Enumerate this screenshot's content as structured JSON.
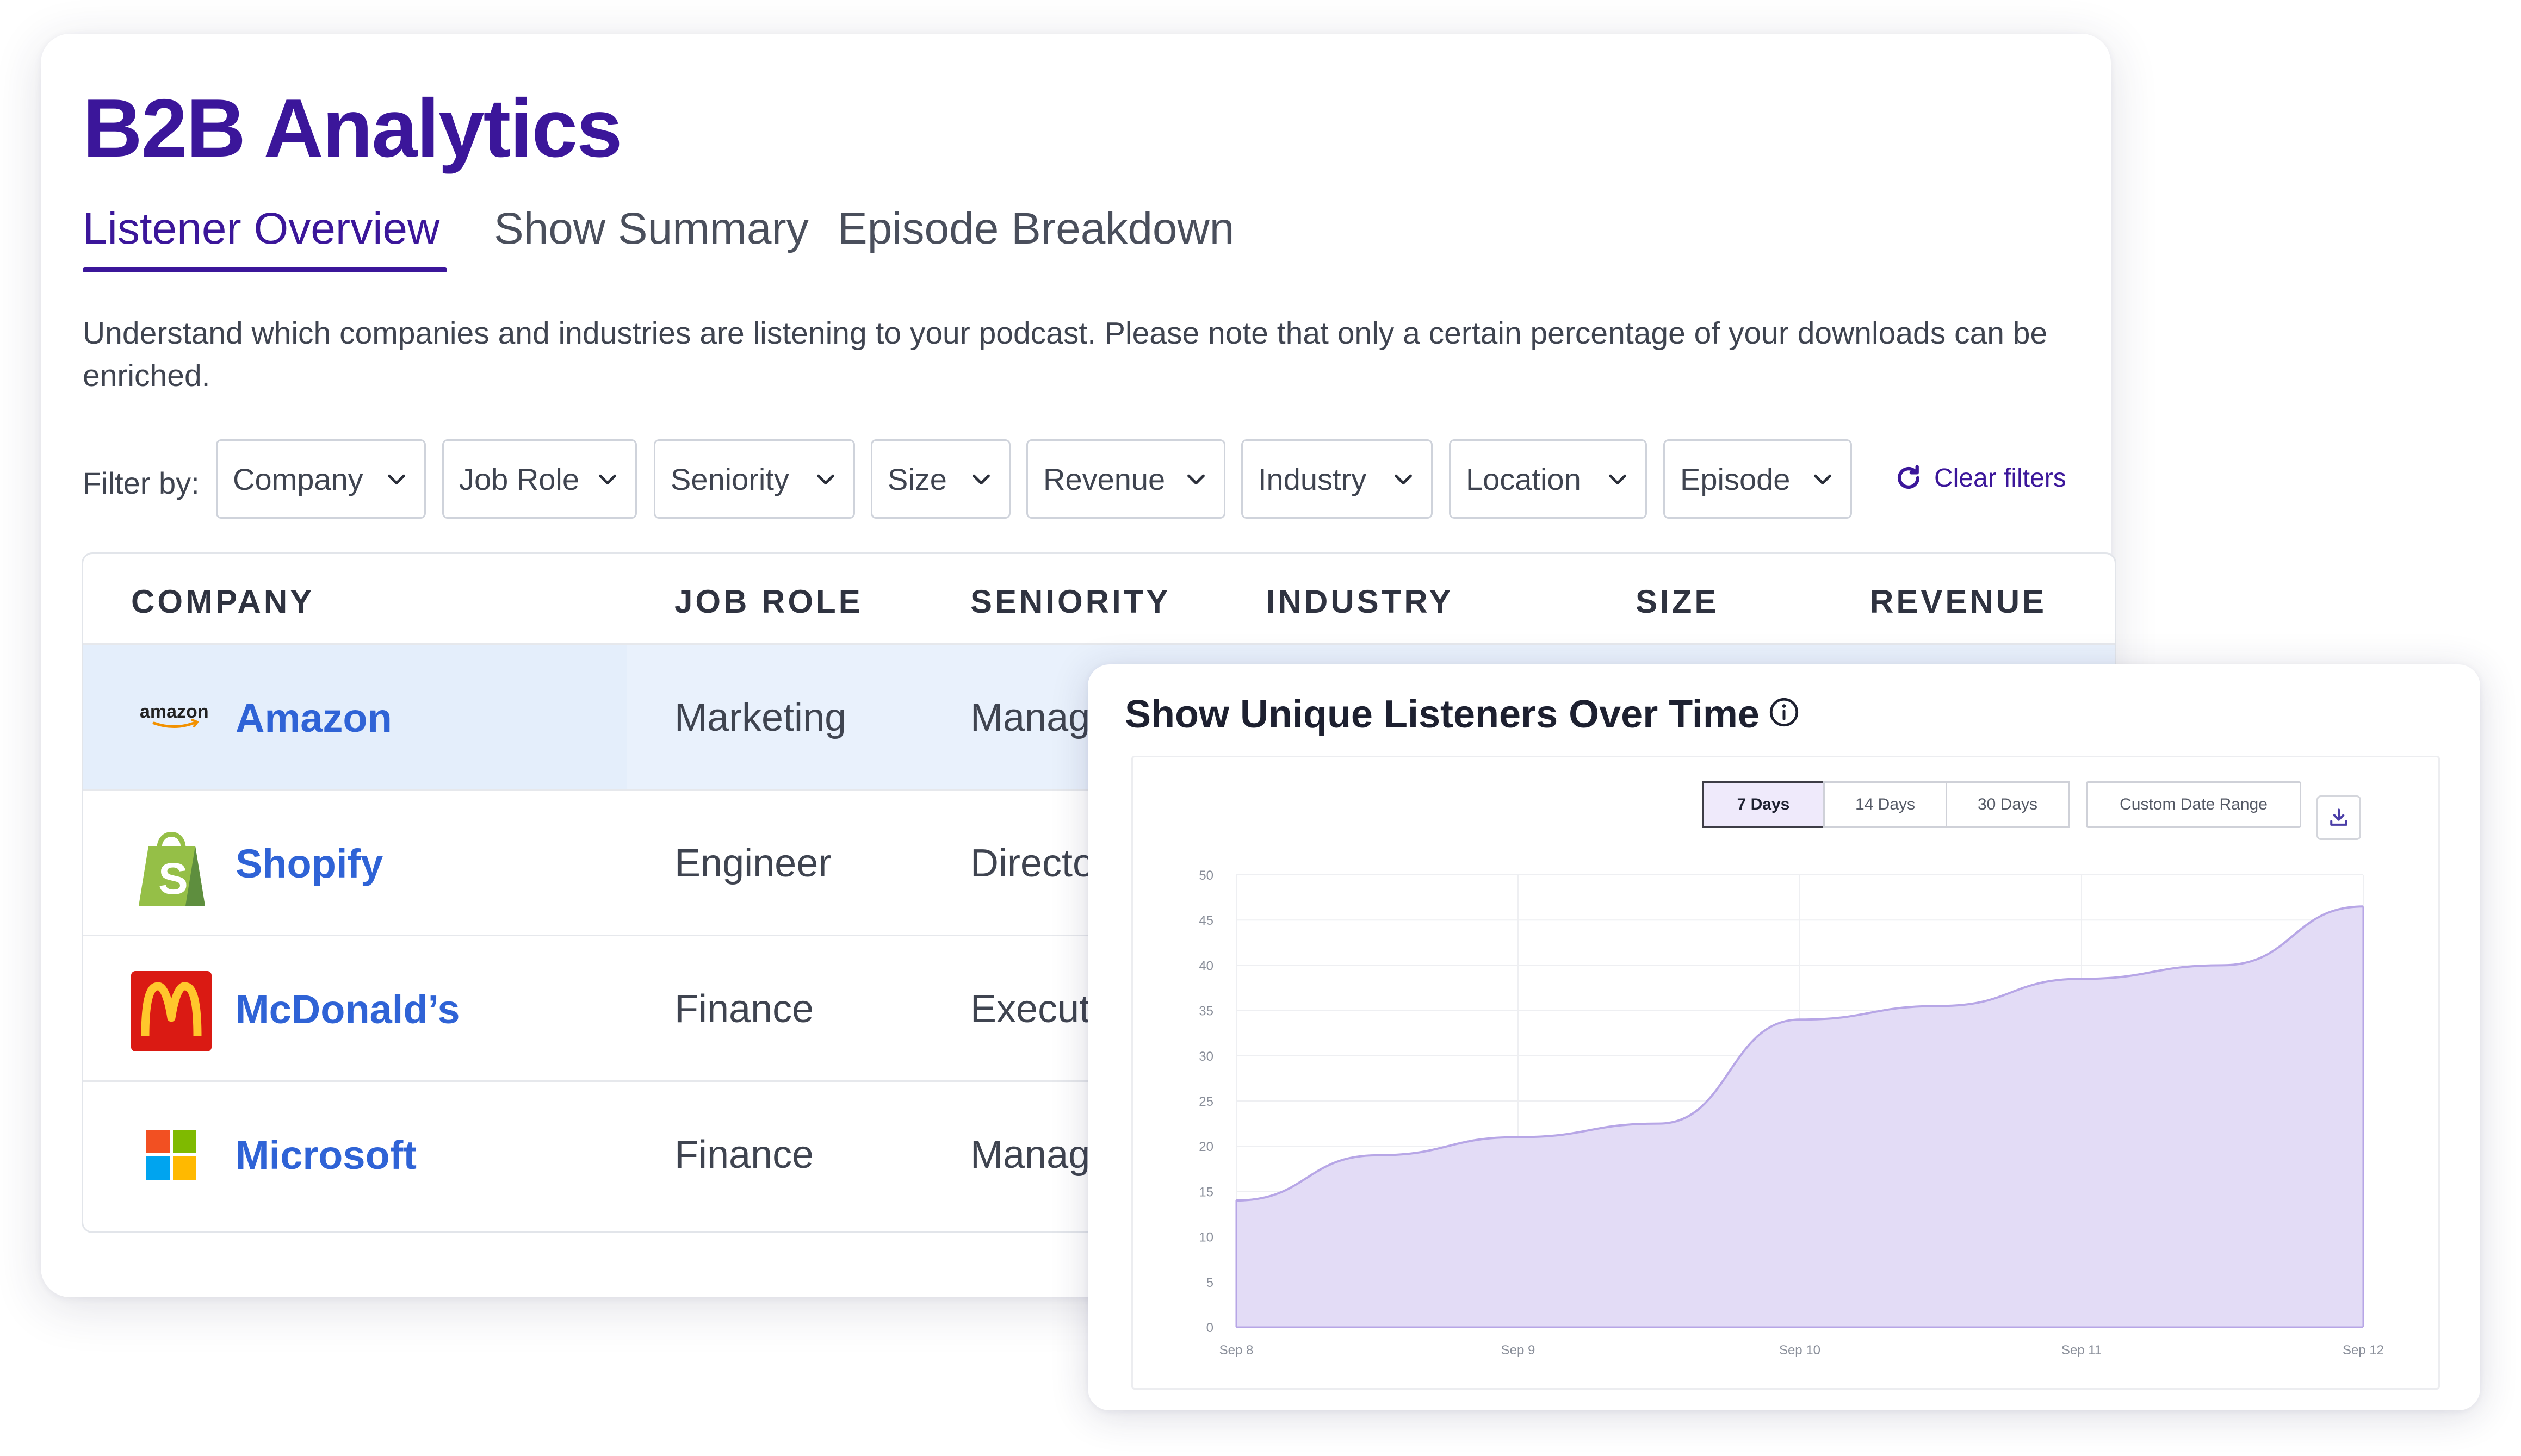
{
  "app": {
    "title": "B2B Analytics",
    "tabs": [
      {
        "label": "Listener Overview",
        "active": true
      },
      {
        "label": "Show Summary",
        "active": false
      },
      {
        "label": "Episode Breakdown",
        "active": false
      }
    ],
    "description": "Understand which companies and industries are listening to your podcast. Please note that only a certain percentage of your downloads can be enriched."
  },
  "filters": {
    "label": "Filter by:",
    "items": [
      "Company",
      "Job Role",
      "Seniority",
      "Size",
      "Revenue",
      "Industry",
      "Location",
      "Episode"
    ],
    "clear_label": "Clear filters"
  },
  "table": {
    "columns": [
      "COMPANY",
      "JOB ROLE",
      "SENIORITY",
      "INDUSTRY",
      "SIZE",
      "REVENUE"
    ],
    "rows": [
      {
        "company": "Amazon",
        "logo": "amazon-logo",
        "logo_text": "amazon",
        "job_role": "Marketing",
        "seniority": "Manag"
      },
      {
        "company": "Shopify",
        "logo": "shopify-logo",
        "job_role": "Engineer",
        "seniority": "Directo"
      },
      {
        "company": "McDonald’s",
        "logo": "mcdonalds-logo",
        "job_role": "Finance",
        "seniority": "Execut"
      },
      {
        "company": "Microsoft",
        "logo": "microsoft-logo",
        "job_role": "Finance",
        "seniority": "Manag"
      }
    ]
  },
  "chart_card": {
    "title": "Show Unique Listeners Over Time",
    "ranges": [
      {
        "label": "7 Days",
        "active": true
      },
      {
        "label": "14 Days",
        "active": false
      },
      {
        "label": "30 Days",
        "active": false
      }
    ],
    "custom_range_label": "Custom Date Range"
  },
  "chart_data": {
    "type": "area",
    "title": "Show Unique Listeners Over Time",
    "x": [
      "Sep 8",
      "Sep 8.5",
      "Sep 9",
      "Sep 9.5",
      "Sep 10",
      "Sep 10.5",
      "Sep 11",
      "Sep 11.5",
      "Sep 12"
    ],
    "x_ticks": [
      "Sep 8",
      "Sep 9",
      "Sep 10",
      "Sep 11",
      "Sep 12"
    ],
    "values": [
      14,
      19,
      21,
      22.5,
      34,
      35.5,
      38.5,
      40,
      46.5
    ],
    "ylim": [
      0,
      50
    ],
    "y_ticks": [
      0,
      5,
      10,
      15,
      20,
      25,
      30,
      35,
      40,
      45,
      50
    ],
    "grid": true,
    "fill_color": "#e3dcf6",
    "line_color": "#b7a6e6"
  },
  "colors": {
    "brand": "#3b169a",
    "link": "#2f63d6",
    "row_highlight": "#e9f1fc"
  }
}
